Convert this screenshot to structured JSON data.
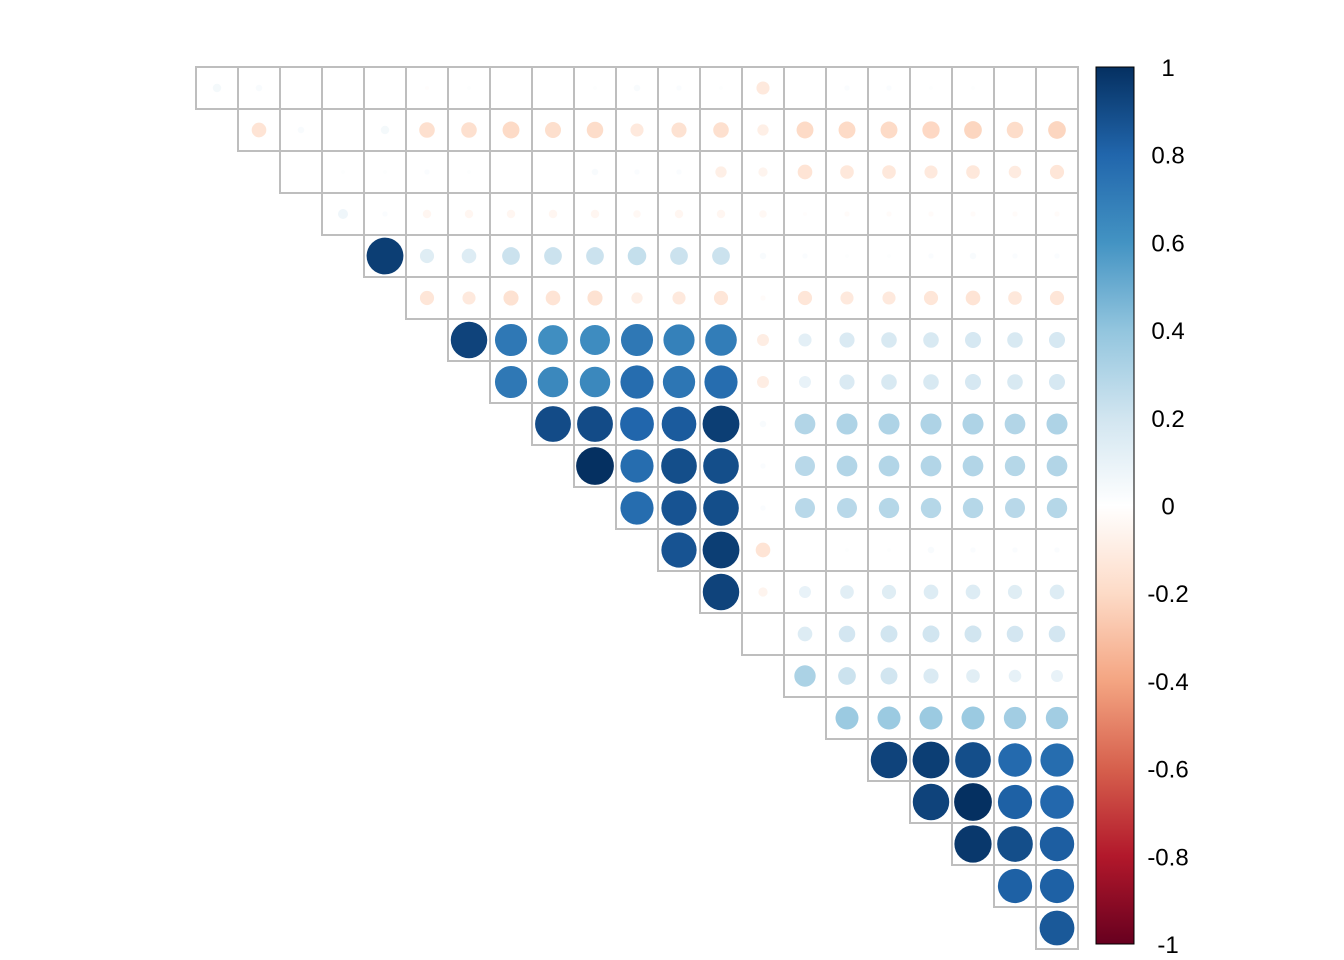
{
  "chart_data": {
    "type": "heatmap",
    "subtype": "correlation-matrix-upper-triangle-circles",
    "n_variables": 21,
    "variable_labels": [
      "",
      "",
      "",
      "",
      "",
      "",
      "",
      "",
      "",
      "",
      "",
      "",
      "",
      "",
      "",
      "",
      "",
      "",
      "",
      "",
      ""
    ],
    "value_range": [
      -1,
      1
    ],
    "colorbar": {
      "ticks": [
        "1",
        "0.8",
        "0.6",
        "0.4",
        "0.2",
        "0",
        "-0.2",
        "-0.4",
        "-0.6",
        "-0.8",
        "-1"
      ],
      "tick_values": [
        1,
        0.8,
        0.6,
        0.4,
        0.2,
        0,
        -0.2,
        -0.4,
        -0.6,
        -0.8,
        -1
      ],
      "palette": [
        "#67001F",
        "#B2182B",
        "#D6604D",
        "#F4A582",
        "#FDDBC7",
        "#FFFFFF",
        "#D1E5F0",
        "#92C5DE",
        "#4393C3",
        "#2166AC",
        "#053061"
      ],
      "placement": "right"
    },
    "grid": true,
    "grid_color": "#BEBEBE",
    "rows": [
      [
        0.05,
        0.03,
        0.0,
        0.0,
        0.0,
        -0.01,
        0.01,
        0.0,
        0.0,
        0.01,
        0.03,
        0.02,
        0.01,
        -0.12,
        0.0,
        0.02,
        0.02,
        0.01,
        0.01,
        0.0,
        0.0
      ],
      [
        -0.15,
        0.03,
        0.0,
        0.05,
        -0.17,
        -0.17,
        -0.2,
        -0.18,
        -0.19,
        -0.12,
        -0.16,
        -0.17,
        -0.09,
        -0.2,
        -0.2,
        -0.2,
        -0.21,
        -0.22,
        -0.19,
        -0.22
      ],
      [
        0.0,
        0.01,
        0.01,
        0.02,
        0.01,
        0.0,
        0.0,
        0.03,
        0.02,
        0.02,
        -0.09,
        -0.06,
        -0.15,
        -0.13,
        -0.13,
        -0.12,
        -0.13,
        -0.11,
        -0.14
      ],
      [
        0.07,
        0.02,
        -0.05,
        -0.05,
        -0.05,
        -0.05,
        -0.05,
        -0.04,
        -0.05,
        -0.05,
        -0.04,
        -0.01,
        -0.02,
        -0.02,
        -0.02,
        -0.02,
        -0.02,
        -0.02
      ],
      [
        0.95,
        0.14,
        0.15,
        0.22,
        0.22,
        0.22,
        0.24,
        0.22,
        0.22,
        0.03,
        0.02,
        0.01,
        0.01,
        0.02,
        0.03,
        0.02,
        0.02
      ],
      [
        -0.14,
        -0.12,
        -0.16,
        -0.15,
        -0.16,
        -0.09,
        -0.12,
        -0.14,
        -0.02,
        -0.14,
        -0.12,
        -0.12,
        -0.14,
        -0.15,
        -0.13,
        -0.14
      ],
      [
        0.93,
        0.72,
        0.62,
        0.63,
        0.72,
        0.68,
        0.7,
        -0.1,
        0.12,
        0.16,
        0.17,
        0.17,
        0.18,
        0.17,
        0.18
      ],
      [
        0.72,
        0.65,
        0.65,
        0.77,
        0.73,
        0.77,
        -0.1,
        0.1,
        0.16,
        0.17,
        0.17,
        0.18,
        0.17,
        0.18
      ],
      [
        0.9,
        0.9,
        0.8,
        0.84,
        0.95,
        0.03,
        0.3,
        0.31,
        0.31,
        0.31,
        0.31,
        0.3,
        0.31
      ],
      [
        1.0,
        0.77,
        0.89,
        0.89,
        0.02,
        0.28,
        0.3,
        0.3,
        0.3,
        0.3,
        0.29,
        0.3
      ],
      [
        0.77,
        0.87,
        0.89,
        0.02,
        0.28,
        0.28,
        0.29,
        0.29,
        0.29,
        0.28,
        0.29
      ],
      [
        0.87,
        0.95,
        -0.15,
        0.0,
        0.01,
        0.01,
        0.03,
        0.02,
        0.02,
        0.02
      ],
      [
        0.93,
        -0.06,
        0.1,
        0.13,
        0.14,
        0.15,
        0.15,
        0.14,
        0.15
      ],
      [
        0.0,
        0.15,
        0.19,
        0.2,
        0.2,
        0.2,
        0.19,
        0.19
      ],
      [
        0.32,
        0.22,
        0.2,
        0.16,
        0.13,
        0.11,
        0.1
      ],
      [
        0.37,
        0.37,
        0.37,
        0.37,
        0.35,
        0.35
      ],
      [
        0.93,
        0.95,
        0.89,
        0.78,
        0.77
      ],
      [
        0.93,
        1.0,
        0.82,
        0.79
      ],
      [
        0.97,
        0.89,
        0.83
      ],
      [
        0.82,
        0.82
      ],
      [
        0.85
      ]
    ]
  }
}
